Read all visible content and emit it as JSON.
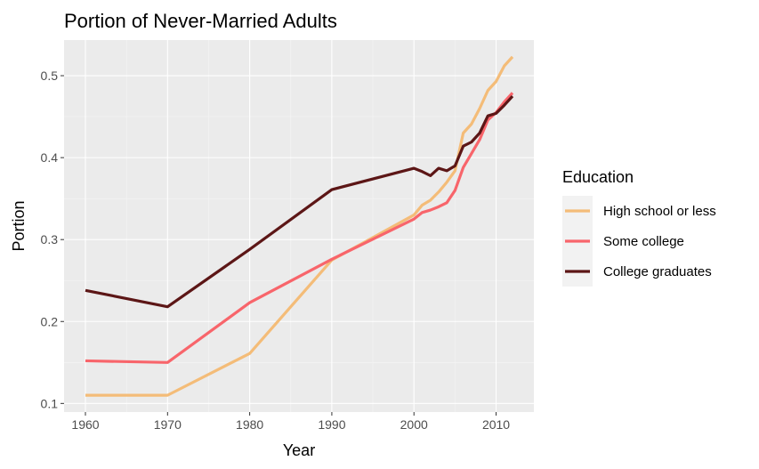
{
  "chart_data": {
    "type": "line",
    "title": "Portion of Never-Married Adults",
    "xlabel": "Year",
    "ylabel": "Portion",
    "xlim": [
      1957.4,
      2014.6
    ],
    "ylim": [
      0.0895,
      0.5435
    ],
    "x_ticks": [
      1960,
      1970,
      1980,
      1990,
      2000,
      2010
    ],
    "x_tick_labels": [
      "1960",
      "1970",
      "1980",
      "1990",
      "2000",
      "2010"
    ],
    "y_ticks": [
      0.1,
      0.2,
      0.3,
      0.4,
      0.5
    ],
    "y_tick_labels": [
      "0.1",
      "0.2",
      "0.3",
      "0.4",
      "0.5"
    ],
    "grid": true,
    "legend": {
      "title": "Education",
      "position": "right"
    },
    "series": [
      {
        "name": "High school or less",
        "color": "#f4bc78",
        "points": [
          [
            1960,
            0.11
          ],
          [
            1970,
            0.11
          ],
          [
            1980,
            0.161
          ],
          [
            1990,
            0.275
          ],
          [
            2000,
            0.33
          ],
          [
            2001,
            0.342
          ],
          [
            2002,
            0.348
          ],
          [
            2003,
            0.358
          ],
          [
            2004,
            0.37
          ],
          [
            2005,
            0.384
          ],
          [
            2006,
            0.43
          ],
          [
            2007,
            0.441
          ],
          [
            2008,
            0.46
          ],
          [
            2009,
            0.482
          ],
          [
            2010,
            0.493
          ],
          [
            2011,
            0.512
          ],
          [
            2012,
            0.523
          ]
        ]
      },
      {
        "name": "Some college",
        "color": "#f8656b",
        "points": [
          [
            1960,
            0.152
          ],
          [
            1970,
            0.15
          ],
          [
            1980,
            0.223
          ],
          [
            1990,
            0.276
          ],
          [
            2000,
            0.325
          ],
          [
            2001,
            0.333
          ],
          [
            2002,
            0.336
          ],
          [
            2003,
            0.34
          ],
          [
            2004,
            0.345
          ],
          [
            2005,
            0.36
          ],
          [
            2006,
            0.388
          ],
          [
            2007,
            0.405
          ],
          [
            2008,
            0.422
          ],
          [
            2009,
            0.446
          ],
          [
            2010,
            0.455
          ],
          [
            2011,
            0.468
          ],
          [
            2012,
            0.479
          ]
        ]
      },
      {
        "name": "College graduates",
        "color": "#5c1616",
        "points": [
          [
            1960,
            0.238
          ],
          [
            1970,
            0.218
          ],
          [
            1980,
            0.288
          ],
          [
            1990,
            0.361
          ],
          [
            2000,
            0.387
          ],
          [
            2001,
            0.383
          ],
          [
            2002,
            0.378
          ],
          [
            2003,
            0.387
          ],
          [
            2004,
            0.384
          ],
          [
            2005,
            0.39
          ],
          [
            2006,
            0.414
          ],
          [
            2007,
            0.419
          ],
          [
            2008,
            0.43
          ],
          [
            2009,
            0.451
          ],
          [
            2010,
            0.454
          ],
          [
            2011,
            0.464
          ],
          [
            2012,
            0.475
          ]
        ]
      }
    ]
  }
}
